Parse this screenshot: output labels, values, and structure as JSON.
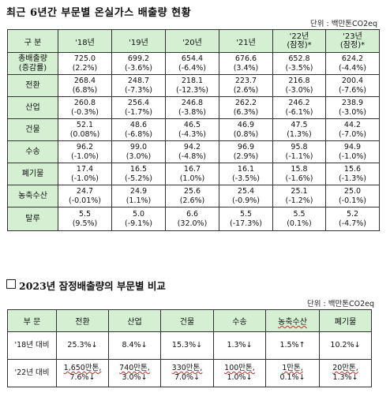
{
  "title": "최근 6년간 부문별 온실가스 배출량 현황",
  "unit1": "단위 : 백만톤CO2eq",
  "table1": {
    "header": [
      "구 분",
      "'18년",
      "'19년",
      "'20년",
      "'21년",
      "'22년\n(잠정)*",
      "'23년\n(잠정)*"
    ],
    "rows": [
      {
        "label": "총배출량\n(증감률)",
        "values": [
          [
            "725.0",
            "(2.2%)"
          ],
          [
            "699.2",
            "(-3.6%)"
          ],
          [
            "654.4",
            "(-6.4%)"
          ],
          [
            "676.6",
            "(3.4%)"
          ],
          [
            "652.8",
            "(-3.5%)"
          ],
          [
            "624.2",
            "(-4.4%)"
          ]
        ]
      },
      {
        "label": "전환",
        "values": [
          [
            "268.4",
            "(6.8%)"
          ],
          [
            "248.7",
            "(-7.3%)"
          ],
          [
            "218.1",
            "(-12.3%)"
          ],
          [
            "223.7",
            "(2.6%)"
          ],
          [
            "216.8",
            "(-3.0%)"
          ],
          [
            "200.4",
            "(-7.6%)"
          ]
        ]
      },
      {
        "label": "산업",
        "values": [
          [
            "260.8",
            "(-0.3%)"
          ],
          [
            "256.4",
            "(-1.7%)"
          ],
          [
            "246.8",
            "(-3.8%)"
          ],
          [
            "262.2",
            "(6.3%)"
          ],
          [
            "246.2",
            "(-6.1%)"
          ],
          [
            "238.9",
            "(-3.0%)"
          ]
        ]
      },
      {
        "label": "건물",
        "values": [
          [
            "52.1",
            "(0.08%)"
          ],
          [
            "48.6",
            "(-6.8%)"
          ],
          [
            "46.5",
            "(-4.3%)"
          ],
          [
            "46.9",
            "(0.8%)"
          ],
          [
            "47.5",
            "(1.3%)"
          ],
          [
            "44.2",
            "(-7.0%)"
          ]
        ]
      },
      {
        "label": "수송",
        "values": [
          [
            "96.2",
            "(-1.0%)"
          ],
          [
            "99.0",
            "(3.0%)"
          ],
          [
            "94.2",
            "(-4.8%)"
          ],
          [
            "96.9",
            "(2.9%)"
          ],
          [
            "95.8",
            "(-1.1%)"
          ],
          [
            "94.9",
            "(-1.0%)"
          ]
        ]
      },
      {
        "label": "폐기물",
        "values": [
          [
            "17.4",
            "(-1.0%)"
          ],
          [
            "16.5",
            "(-5.2%)"
          ],
          [
            "16.7",
            "(1.0%)"
          ],
          [
            "16.1",
            "(-3.5%)"
          ],
          [
            "15.8",
            "(-1.6%)"
          ],
          [
            "15.6",
            "(-1.3%)"
          ]
        ]
      },
      {
        "label": "농축수산",
        "values": [
          [
            "24.7",
            "(-0.01%)"
          ],
          [
            "24.9",
            "(1.1%)"
          ],
          [
            "25.6",
            "(2.6%)"
          ],
          [
            "25.4",
            "(-0.9%)"
          ],
          [
            "25.1",
            "(-1.2%)"
          ],
          [
            "25.0",
            "(-0.1%)"
          ]
        ]
      },
      {
        "label": "탈루",
        "values": [
          [
            "5.5",
            "(9.5%)"
          ],
          [
            "5.0",
            "(-9.1%)"
          ],
          [
            "6.6",
            "(32.0%)"
          ],
          [
            "5.5",
            "(-17.3%)"
          ],
          [
            "5.5",
            "(0.1%)"
          ],
          [
            "5.2",
            "(-4.7%)"
          ]
        ]
      }
    ]
  },
  "subtitle": "2023년 잠정배출량의 부문별 비교",
  "unit2": "단위 : 백만톤CO2eq",
  "table2": {
    "header": [
      "부 문",
      "전환",
      "산업",
      "건물",
      "수송",
      "농축수산",
      "폐기물"
    ],
    "rows": [
      {
        "label": "'18년 대비",
        "cells": [
          "25.3%↓",
          "8.4%↓",
          "15.3%↓",
          "1.3%↓",
          "1.5%↑",
          "10.2%↓"
        ]
      },
      {
        "label": "'22년 대비",
        "cells": [
          [
            "1,650만톤,",
            "7.6%↓"
          ],
          [
            "740만톤,",
            "3.0%↓"
          ],
          [
            "330만톤,",
            "7.0%↓"
          ],
          [
            "100만톤,",
            "1.0%↓"
          ],
          [
            "1만톤,",
            "0.1%↓"
          ],
          [
            "20만톤,",
            "1.3%↓"
          ]
        ]
      }
    ]
  }
}
